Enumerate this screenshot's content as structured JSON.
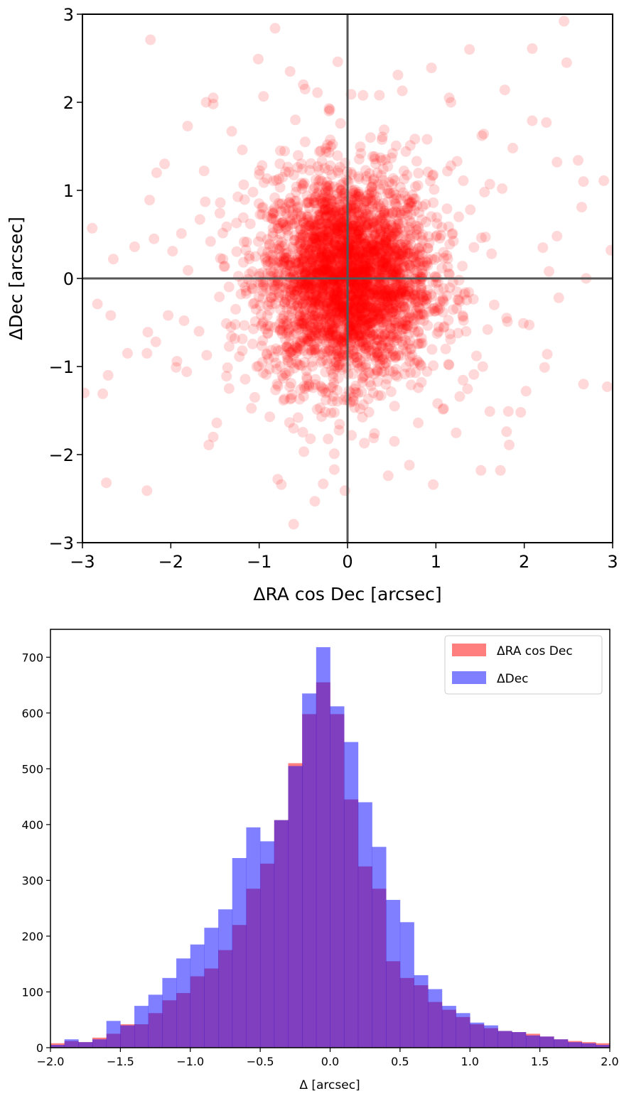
{
  "chart_data": [
    {
      "type": "scatter",
      "title": "",
      "xlabel": "ΔRA cos Dec [arcsec]",
      "ylabel": "ΔDec [arcsec]",
      "xlim": [
        -3,
        3
      ],
      "ylim": [
        -3,
        3
      ],
      "xticks": [
        -3,
        -2,
        -1,
        0,
        1,
        2,
        3
      ],
      "yticks": [
        -3,
        -2,
        -1,
        0,
        1,
        2,
        3
      ],
      "xtick_labels": [
        "−3",
        "−2",
        "−1",
        "0",
        "1",
        "2",
        "3"
      ],
      "ytick_labels": [
        "−3",
        "−2",
        "−1",
        "0",
        "1",
        "2",
        "3"
      ],
      "zero_lines": true,
      "grid": false,
      "marker_color": "#ff0000",
      "marker_alpha": 0.15,
      "points": [
        [
          -2.23,
          2.71
        ],
        [
          -0.82,
          2.84
        ],
        [
          2.45,
          2.92
        ],
        [
          -1.01,
          2.49
        ],
        [
          -0.11,
          2.46
        ],
        [
          1.38,
          2.6
        ],
        [
          2.09,
          2.61
        ],
        [
          2.48,
          2.45
        ],
        [
          -1.52,
          2.05
        ],
        [
          -1.52,
          1.98
        ],
        [
          -0.65,
          2.35
        ],
        [
          -0.5,
          2.2
        ],
        [
          -0.48,
          2.15
        ],
        [
          0.04,
          2.09
        ],
        [
          0.95,
          2.39
        ],
        [
          0.57,
          2.31
        ],
        [
          1.17,
          2.0
        ],
        [
          1.15,
          2.05
        ],
        [
          1.78,
          2.14
        ],
        [
          -1.81,
          1.73
        ],
        [
          -2.07,
          1.3
        ],
        [
          -2.16,
          1.2
        ],
        [
          -2.89,
          0.57
        ],
        [
          -1.6,
          2.0
        ],
        [
          0.9,
          1.58
        ],
        [
          1.54,
          1.64
        ],
        [
          1.52,
          1.62
        ],
        [
          1.87,
          1.48
        ],
        [
          1.75,
          1.02
        ],
        [
          2.09,
          1.79
        ],
        [
          2.25,
          1.77
        ],
        [
          2.67,
          1.1
        ],
        [
          2.9,
          1.11
        ],
        [
          2.65,
          0.81
        ],
        [
          2.37,
          0.48
        ],
        [
          2.21,
          0.35
        ],
        [
          2.37,
          1.32
        ],
        [
          2.61,
          1.34
        ],
        [
          2.28,
          0.08
        ],
        [
          2.98,
          0.32
        ],
        [
          2.7,
          0.0
        ],
        [
          -2.65,
          0.22
        ],
        [
          -2.83,
          -0.29
        ],
        [
          -2.68,
          -0.42
        ],
        [
          -2.49,
          -0.85
        ],
        [
          -2.71,
          -1.1
        ],
        [
          -2.77,
          -1.31
        ],
        [
          -2.98,
          -1.3
        ],
        [
          -2.27,
          -0.85
        ],
        [
          -2.26,
          -0.61
        ],
        [
          -2.17,
          -0.72
        ],
        [
          -1.94,
          -1.01
        ],
        [
          -1.93,
          -0.94
        ],
        [
          -1.82,
          -1.06
        ],
        [
          -2.73,
          -2.32
        ],
        [
          -2.27,
          -2.41
        ],
        [
          -1.52,
          -1.8
        ],
        [
          -1.48,
          -1.64
        ],
        [
          -1.57,
          -1.89
        ],
        [
          -0.75,
          -2.34
        ],
        [
          -0.79,
          -2.28
        ],
        [
          -0.37,
          -2.53
        ],
        [
          -0.61,
          -2.79
        ],
        [
          -0.03,
          -2.41
        ],
        [
          -0.15,
          -2.17
        ],
        [
          0.46,
          -2.24
        ],
        [
          0.7,
          -2.12
        ],
        [
          0.97,
          -2.34
        ],
        [
          1.51,
          -2.18
        ],
        [
          1.73,
          -2.18
        ],
        [
          1.61,
          -1.51
        ],
        [
          1.82,
          -1.51
        ],
        [
          1.96,
          -1.52
        ],
        [
          1.8,
          -1.74
        ],
        [
          1.83,
          -1.89
        ],
        [
          2.02,
          -1.28
        ],
        [
          2.23,
          -1.01
        ],
        [
          2.26,
          -0.86
        ],
        [
          2.67,
          -1.2
        ],
        [
          2.94,
          -1.23
        ],
        [
          2.39,
          -0.22
        ],
        [
          1.99,
          -0.51
        ],
        [
          1.81,
          -0.49
        ],
        [
          1.8,
          -0.45
        ],
        [
          0.62,
          2.13
        ],
        [
          0.36,
          2.08
        ],
        [
          -0.34,
          2.11
        ],
        [
          -0.21,
          1.93
        ],
        [
          -1.31,
          1.67
        ],
        [
          -1.19,
          1.46
        ],
        [
          -1.0,
          1.18
        ],
        [
          -0.59,
          1.8
        ],
        [
          0.51,
          1.42
        ],
        [
          0.71,
          1.51
        ],
        [
          1.24,
          1.33
        ],
        [
          1.61,
          1.07
        ],
        [
          1.55,
          0.98
        ],
        [
          1.31,
          1.11
        ],
        [
          -1.61,
          0.87
        ],
        [
          -1.44,
          0.86
        ],
        [
          -1.55,
          0.42
        ],
        [
          -1.88,
          0.51
        ],
        [
          -1.98,
          0.31
        ],
        [
          -2.24,
          0.89
        ],
        [
          -2.19,
          0.45
        ],
        [
          -2.41,
          0.36
        ],
        [
          -2.03,
          -0.42
        ],
        [
          -1.85,
          -0.48
        ],
        [
          -1.68,
          -0.6
        ],
        [
          -1.37,
          -1.11
        ],
        [
          -1.34,
          -1.25
        ],
        [
          -1.05,
          -1.35
        ],
        [
          -0.88,
          -1.57
        ],
        [
          -0.56,
          -1.58
        ],
        [
          -0.42,
          -1.82
        ],
        [
          -0.15,
          -1.99
        ],
        [
          0.19,
          -1.87
        ],
        [
          0.53,
          -1.85
        ],
        [
          0.8,
          -1.64
        ],
        [
          1.02,
          -1.42
        ],
        [
          1.27,
          -1.34
        ],
        [
          1.43,
          -1.09
        ],
        [
          1.46,
          -0.88
        ],
        [
          1.66,
          -0.3
        ],
        [
          1.63,
          0.28
        ],
        [
          1.56,
          0.47
        ],
        [
          1.39,
          0.78
        ],
        [
          1.17,
          1.28
        ],
        [
          0.91,
          1.21
        ],
        [
          0.66,
          1.44
        ],
        [
          0.26,
          1.6
        ],
        [
          -0.08,
          1.76
        ],
        [
          -0.48,
          1.55
        ],
        [
          -0.76,
          1.45
        ],
        [
          -1.07,
          0.98
        ],
        [
          -1.18,
          0.69
        ],
        [
          -1.41,
          0.22
        ],
        [
          -1.45,
          -0.21
        ],
        [
          -1.32,
          -0.55
        ],
        [
          -1.19,
          -0.82
        ],
        [
          -0.92,
          -1.09
        ],
        [
          -0.63,
          -1.32
        ],
        [
          -0.31,
          -1.47
        ],
        [
          0.06,
          -1.4
        ],
        [
          0.38,
          -1.33
        ],
        [
          0.72,
          -1.21
        ],
        [
          0.97,
          -0.99
        ],
        [
          1.16,
          -0.63
        ],
        [
          1.27,
          -0.26
        ],
        [
          1.3,
          0.14
        ],
        [
          1.19,
          0.51
        ],
        [
          0.97,
          0.86
        ]
      ],
      "core_sigma": [
        0.48,
        0.58
      ],
      "core_count": 3300
    },
    {
      "type": "bar",
      "title": "",
      "xlabel": "Δ [arcsec]",
      "ylabel": "",
      "xlim": [
        -2.0,
        2.0
      ],
      "ylim": [
        0,
        750
      ],
      "xticks": [
        -2.0,
        -1.5,
        -1.0,
        -0.5,
        0.0,
        0.5,
        1.0,
        1.5,
        2.0
      ],
      "yticks": [
        0,
        100,
        200,
        300,
        400,
        500,
        600,
        700
      ],
      "xtick_labels": [
        "−2.0",
        "−1.5",
        "−1.0",
        "−0.5",
        "0.0",
        "0.5",
        "1.0",
        "1.5",
        "2.0"
      ],
      "ytick_labels": [
        "0",
        "100",
        "200",
        "300",
        "400",
        "500",
        "600",
        "700"
      ],
      "bins": {
        "start": -2.0,
        "width": 0.1,
        "count": 40
      },
      "legend": {
        "placement": "top-right"
      },
      "series": [
        {
          "name": "ΔRA cos Dec",
          "color": "#ff0000",
          "alpha": 0.5,
          "values": [
            8,
            12,
            10,
            18,
            25,
            42,
            42,
            62,
            85,
            98,
            128,
            142,
            175,
            220,
            285,
            330,
            408,
            510,
            598,
            655,
            598,
            445,
            325,
            285,
            155,
            125,
            112,
            82,
            68,
            55,
            42,
            35,
            30,
            28,
            25,
            20,
            15,
            12,
            10,
            8
          ]
        },
        {
          "name": "ΔDec",
          "color": "#0000ff",
          "alpha": 0.5,
          "values": [
            5,
            15,
            10,
            15,
            48,
            40,
            75,
            95,
            125,
            160,
            185,
            215,
            248,
            340,
            395,
            370,
            408,
            505,
            635,
            718,
            612,
            548,
            440,
            360,
            265,
            225,
            130,
            105,
            75,
            62,
            45,
            40,
            30,
            28,
            22,
            20,
            15,
            10,
            8,
            5
          ]
        }
      ]
    }
  ]
}
